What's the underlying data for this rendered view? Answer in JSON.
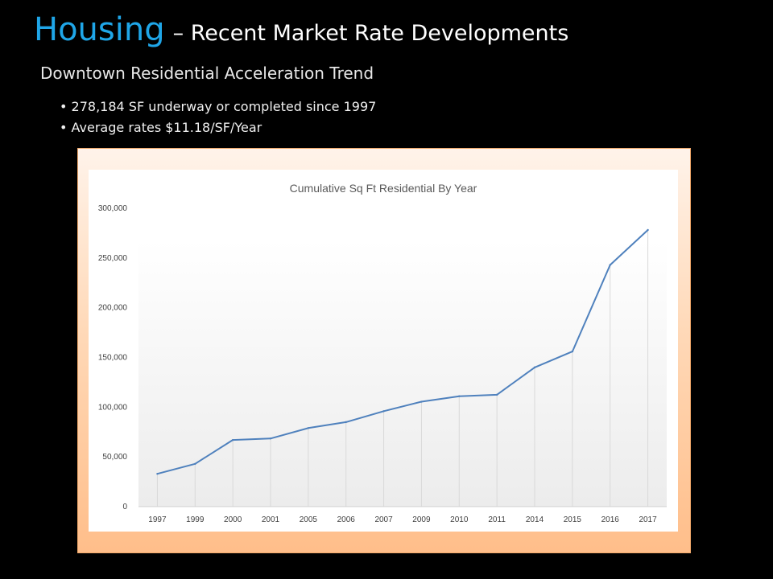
{
  "header": {
    "title_main": "Housing",
    "title_rest": "– Recent Market Rate Developments",
    "subtitle": "Downtown Residential Acceleration Trend",
    "bullets": [
      "278,184 SF underway or completed since 1997",
      "Average rates $11.18/SF/Year"
    ]
  },
  "colors": {
    "title_accent": "#1fa6e8",
    "line": "#4f81bd"
  },
  "chart_data": {
    "type": "line",
    "title": "Cumulative Sq Ft Residential  By Year",
    "xlabel": "",
    "ylabel": "",
    "categories": [
      "1997",
      "1999",
      "2000",
      "2001",
      "2005",
      "2006",
      "2007",
      "2009",
      "2010",
      "2011",
      "2014",
      "2015",
      "2016",
      "2017"
    ],
    "series": [
      {
        "values": [
          33000,
          43000,
          67000,
          68500,
          79000,
          85000,
          96000,
          105500,
          111000,
          112500,
          140000,
          156000,
          243000,
          278184
        ]
      }
    ],
    "ylim": [
      0,
      300000
    ],
    "yticks": [
      "0",
      "50,000",
      "100,000",
      "150,000",
      "200,000",
      "250,000",
      "300,000"
    ],
    "grid": "vertical",
    "legend": "none"
  }
}
